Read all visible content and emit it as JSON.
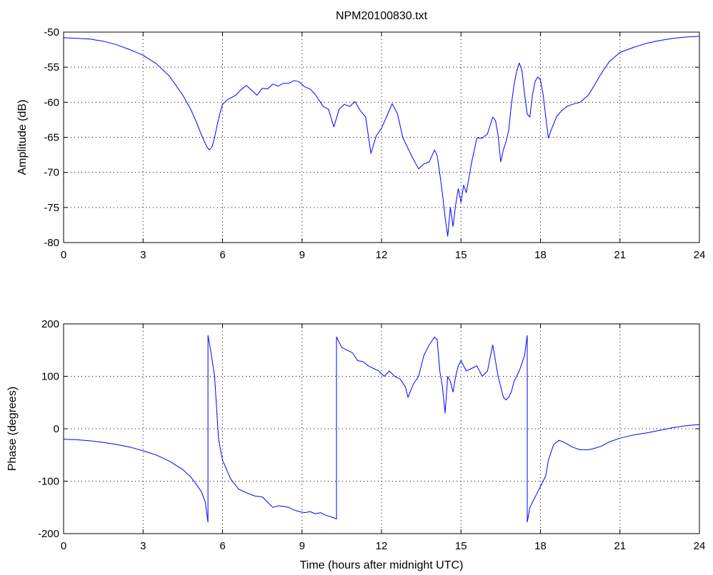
{
  "figure": {
    "title": "NPM20100830.txt"
  },
  "chart_data": [
    {
      "type": "line",
      "title": "NPM20100830.txt",
      "xlabel": "",
      "ylabel": "Amplitude (dB)",
      "xlim": [
        0,
        24
      ],
      "ylim": [
        -80,
        -50
      ],
      "grid": true,
      "line_color": "#0000ff",
      "x_ticks": [
        0,
        3,
        6,
        9,
        12,
        15,
        18,
        21,
        24
      ],
      "y_ticks": [
        -80,
        -75,
        -70,
        -65,
        -60,
        -55,
        -50
      ],
      "series": [
        {
          "x": [
            0,
            0.5,
            1,
            1.5,
            2,
            2.5,
            3,
            3.5,
            4,
            4.5,
            4.8,
            5.0,
            5.2,
            5.4,
            5.5,
            5.6,
            5.7,
            5.8,
            5.9,
            6.0,
            6.2,
            6.5,
            6.7,
            6.9,
            7.1,
            7.3,
            7.5,
            7.7,
            7.9,
            8.1,
            8.3,
            8.5,
            8.7,
            8.9,
            9.1,
            9.3,
            9.5,
            9.8,
            10.0,
            10.2,
            10.4,
            10.6,
            10.8,
            11.0,
            11.2,
            11.4,
            11.6,
            11.8,
            12.0,
            12.2,
            12.4,
            12.6,
            12.8,
            13.0,
            13.2,
            13.4,
            13.6,
            13.8,
            14.0,
            14.1,
            14.2,
            14.3,
            14.4,
            14.5,
            14.6,
            14.7,
            14.8,
            14.9,
            15.0,
            15.1,
            15.2,
            15.4,
            15.6,
            15.8,
            16.0,
            16.2,
            16.3,
            16.4,
            16.5,
            16.6,
            16.7,
            16.8,
            16.9,
            17.0,
            17.1,
            17.2,
            17.3,
            17.4,
            17.5,
            17.6,
            17.7,
            17.8,
            17.9,
            18.0,
            18.1,
            18.2,
            18.3,
            18.4,
            18.6,
            18.8,
            19.0,
            19.2,
            19.5,
            19.8,
            20.0,
            20.2,
            20.4,
            20.6,
            21.0,
            21.5,
            22.0,
            22.5,
            23.0,
            23.5,
            24.0
          ],
          "values": [
            -50.8,
            -50.9,
            -51.0,
            -51.3,
            -51.8,
            -52.5,
            -53.3,
            -54.5,
            -56.3,
            -59.0,
            -61.0,
            -62.7,
            -64.6,
            -66.3,
            -66.8,
            -66.4,
            -65.0,
            -63.2,
            -61.6,
            -60.3,
            -59.6,
            -59.0,
            -58.2,
            -57.6,
            -58.3,
            -59.0,
            -58.0,
            -58.1,
            -57.4,
            -57.7,
            -57.3,
            -57.3,
            -56.9,
            -57.1,
            -57.8,
            -58.1,
            -58.9,
            -60.6,
            -61.0,
            -63.5,
            -61.0,
            -60.3,
            -60.6,
            -59.9,
            -61.2,
            -62.1,
            -67.3,
            -64.8,
            -63.7,
            -62.0,
            -60.2,
            -61.6,
            -65.0,
            -66.6,
            -68.1,
            -69.5,
            -68.8,
            -68.5,
            -66.8,
            -67.6,
            -70.2,
            -73.0,
            -76.4,
            -79.1,
            -75.0,
            -77.7,
            -74.6,
            -72.3,
            -74.3,
            -71.8,
            -72.9,
            -68.6,
            -65.1,
            -65.1,
            -64.5,
            -62.1,
            -62.6,
            -64.7,
            -68.5,
            -66.8,
            -65.6,
            -64.0,
            -60.4,
            -57.6,
            -55.6,
            -54.4,
            -55.4,
            -58.9,
            -61.7,
            -62.1,
            -58.9,
            -57.0,
            -56.4,
            -56.8,
            -58.9,
            -62.1,
            -65.1,
            -64.0,
            -62.1,
            -61.2,
            -60.6,
            -60.3,
            -60.0,
            -59.0,
            -57.8,
            -56.5,
            -55.3,
            -54.2,
            -52.9,
            -52.2,
            -51.6,
            -51.2,
            -50.9,
            -50.7,
            -50.6
          ]
        }
      ]
    },
    {
      "type": "line",
      "title": "",
      "xlabel": "Time (hours after midnight UTC)",
      "ylabel": "Phase (degrees)",
      "xlim": [
        0,
        24
      ],
      "ylim": [
        -200,
        200
      ],
      "grid": true,
      "line_color": "#0000ff",
      "x_ticks": [
        0,
        3,
        6,
        9,
        12,
        15,
        18,
        21,
        24
      ],
      "y_ticks": [
        -200,
        -100,
        0,
        100,
        200
      ],
      "series": [
        {
          "x": [
            0,
            0.5,
            1.0,
            1.5,
            2.0,
            2.5,
            3.0,
            3.5,
            4.0,
            4.5,
            4.8,
            5.0,
            5.2,
            5.35,
            5.45,
            5.45,
            5.55,
            5.7,
            5.85,
            6.0,
            6.3,
            6.6,
            6.9,
            7.2,
            7.5,
            7.7,
            7.9,
            8.1,
            8.3,
            8.5,
            8.7,
            8.9,
            9.1,
            9.3,
            9.5,
            9.7,
            9.9,
            10.1,
            10.3,
            10.3,
            10.5,
            10.7,
            10.9,
            11.1,
            11.3,
            11.5,
            11.7,
            11.9,
            12.1,
            12.3,
            12.5,
            12.7,
            12.9,
            13.0,
            13.2,
            13.4,
            13.6,
            13.8,
            14.0,
            14.1,
            14.2,
            14.3,
            14.4,
            14.5,
            14.6,
            14.7,
            14.8,
            14.9,
            15.0,
            15.2,
            15.4,
            15.6,
            15.8,
            16.0,
            16.2,
            16.4,
            16.6,
            16.7,
            16.8,
            16.9,
            17.0,
            17.2,
            17.4,
            17.5,
            17.5,
            17.6,
            17.7,
            17.8,
            17.9,
            18.0,
            18.1,
            18.2,
            18.3,
            18.5,
            18.7,
            18.9,
            19.2,
            19.5,
            19.8,
            20.0,
            20.3,
            20.6,
            21.0,
            21.5,
            22.0,
            22.5,
            23.0,
            23.5,
            24.0
          ],
          "values": [
            -20,
            -21,
            -23,
            -26,
            -30,
            -35,
            -42,
            -50,
            -62,
            -78,
            -92,
            -105,
            -120,
            -140,
            -178,
            178,
            150,
            100,
            -20,
            -60,
            -95,
            -115,
            -122,
            -128,
            -130,
            -140,
            -150,
            -147,
            -148,
            -150,
            -155,
            -158,
            -160,
            -158,
            -162,
            -160,
            -165,
            -168,
            -172,
            175,
            155,
            150,
            145,
            130,
            128,
            120,
            115,
            110,
            100,
            110,
            100,
            95,
            80,
            60,
            85,
            100,
            140,
            160,
            175,
            170,
            110,
            80,
            30,
            100,
            90,
            70,
            100,
            120,
            130,
            110,
            115,
            120,
            100,
            110,
            160,
            100,
            60,
            55,
            60,
            70,
            90,
            110,
            140,
            178,
            -178,
            -150,
            -140,
            -130,
            -120,
            -110,
            -100,
            -90,
            -60,
            -30,
            -22,
            -26,
            -35,
            -40,
            -40,
            -38,
            -33,
            -25,
            -18,
            -12,
            -8,
            -3,
            2,
            6,
            8
          ]
        }
      ]
    }
  ]
}
